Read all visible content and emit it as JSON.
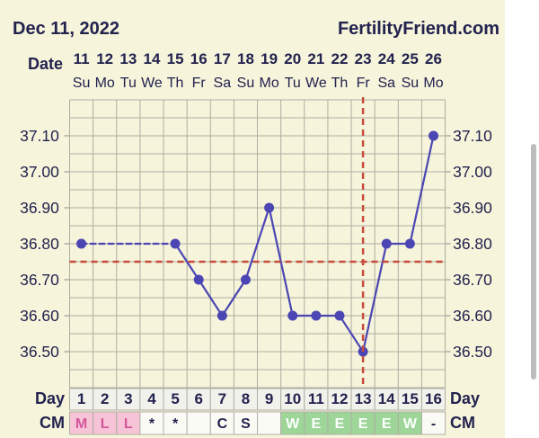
{
  "header": {
    "chart_date": "Dec 11, 2022",
    "site_name": "FertilityFriend.com"
  },
  "row_labels": {
    "date": "Date",
    "day_left": "Day",
    "day_right": "Day",
    "cm_left": "CM",
    "cm_right": "CM"
  },
  "colors": {
    "page_bg": "#f6f4da",
    "outer_bg": "#ffffff",
    "text": "#22224f",
    "grid": "#afaea4",
    "temp_line": "#4b46b4",
    "coverline": "#c84b3e",
    "ovulation_line": "#c84b3e",
    "day_cell_bg": "#f2f2ec",
    "cm_cell_bg": "#fbfbf6",
    "cm_pink_bg": "#f6c4d6",
    "cm_pink_text": "#d4569a",
    "cm_green_bg": "#9dd698",
    "cm_green_text": "#ffffff",
    "scrollbar": "#bdbdbd"
  },
  "chart_data": {
    "type": "line",
    "dates": [
      "11",
      "12",
      "13",
      "14",
      "15",
      "16",
      "17",
      "18",
      "19",
      "20",
      "21",
      "22",
      "23",
      "24",
      "25",
      "26"
    ],
    "weekdays": [
      "Su",
      "Mo",
      "Tu",
      "We",
      "Th",
      "Fr",
      "Sa",
      "Su",
      "Mo",
      "Tu",
      "We",
      "Th",
      "Fr",
      "Sa",
      "Su",
      "Mo"
    ],
    "cycle_days": [
      "1",
      "2",
      "3",
      "4",
      "5",
      "6",
      "7",
      "8",
      "9",
      "10",
      "11",
      "12",
      "13",
      "14",
      "15",
      "16"
    ],
    "y_tick_labels": [
      "37.10",
      "37.00",
      "36.90",
      "36.80",
      "36.70",
      "36.60",
      "36.50"
    ],
    "ylim": [
      36.4,
      37.2
    ],
    "grid": true,
    "series": [
      {
        "values": [
          36.8,
          null,
          null,
          null,
          36.8,
          36.7,
          36.6,
          36.7,
          36.9,
          36.6,
          36.6,
          36.6,
          36.5,
          36.8,
          36.8,
          37.1
        ]
      }
    ],
    "coverline": 36.75,
    "ovulation_day": 13,
    "cervical_mucus": [
      {
        "text": "M",
        "highlight": "pink"
      },
      {
        "text": "L",
        "highlight": "pink"
      },
      {
        "text": "L",
        "highlight": "pink"
      },
      {
        "text": "*",
        "highlight": ""
      },
      {
        "text": "*",
        "highlight": ""
      },
      {
        "text": "",
        "highlight": ""
      },
      {
        "text": "C",
        "highlight": ""
      },
      {
        "text": "S",
        "highlight": ""
      },
      {
        "text": "",
        "highlight": ""
      },
      {
        "text": "W",
        "highlight": "green"
      },
      {
        "text": "E",
        "highlight": "green"
      },
      {
        "text": "E",
        "highlight": "green"
      },
      {
        "text": "E",
        "highlight": "green"
      },
      {
        "text": "E",
        "highlight": "green"
      },
      {
        "text": "W",
        "highlight": "green"
      },
      {
        "text": "-",
        "highlight": ""
      }
    ]
  }
}
